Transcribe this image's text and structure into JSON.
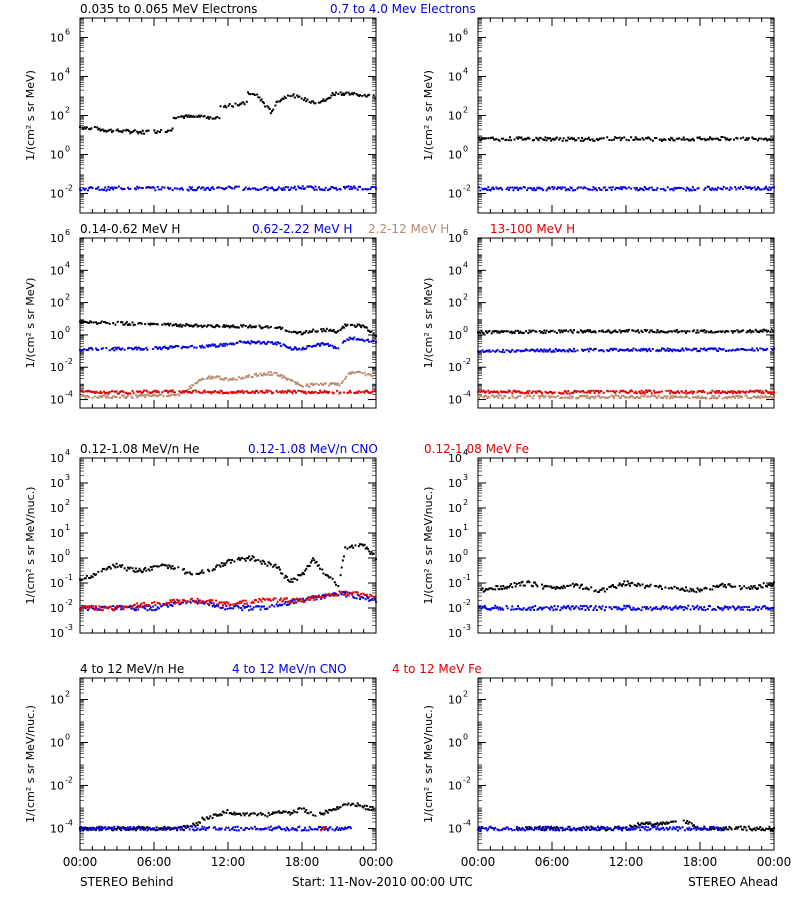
{
  "colors": {
    "black": "#000000",
    "blue": "#0000e0",
    "tan": "#b98a6e",
    "red": "#e00000"
  },
  "chart_data": [
    {
      "type": "scatter",
      "group": "electrons",
      "panel": "STEREO Behind",
      "log_y": true,
      "ylim": [
        0.001,
        10000000
      ],
      "yticks": [
        0.01,
        1,
        100,
        10000,
        1000000
      ],
      "ylabel": "1/(cm² s sr MeV)",
      "xlim": [
        0,
        24
      ],
      "legend": [
        {
          "name": "0.035 to 0.065 MeV Electrons",
          "color": "black"
        },
        {
          "name": "0.7 to 4.0 Mev Electrons",
          "color": "blue"
        }
      ],
      "series": [
        {
          "name": "0.035 to 0.065 MeV Electrons",
          "color": "black",
          "x": [
            0,
            1,
            2,
            3,
            4,
            5,
            6,
            7,
            7.5,
            7.6,
            8,
            9,
            10,
            11,
            11.3,
            11.4,
            12,
            13,
            13.5,
            13.6,
            14,
            14.5,
            15,
            15.5,
            16,
            16.5,
            17,
            18,
            19,
            20,
            20.5,
            21,
            22,
            23,
            24
          ],
          "y": [
            25,
            22,
            18,
            16,
            15,
            14,
            15,
            17,
            18,
            85,
            90,
            85,
            90,
            75,
            70,
            300,
            320,
            380,
            400,
            1500,
            1200,
            900,
            350,
            150,
            500,
            800,
            1200,
            700,
            500,
            600,
            1300,
            1400,
            1300,
            1100,
            900
          ]
        },
        {
          "name": "0.7 to 4.0 Mev Electrons",
          "color": "blue",
          "x": [
            0,
            2,
            4,
            6,
            8,
            10,
            12,
            14,
            16,
            18,
            20,
            22,
            24
          ],
          "y": [
            0.018,
            0.017,
            0.02,
            0.018,
            0.017,
            0.018,
            0.019,
            0.018,
            0.017,
            0.02,
            0.018,
            0.02,
            0.018
          ]
        }
      ]
    },
    {
      "type": "scatter",
      "group": "electrons",
      "panel": "STEREO Ahead",
      "log_y": true,
      "ylim": [
        0.001,
        10000000
      ],
      "yticks": [
        0.01,
        1,
        100,
        10000,
        1000000
      ],
      "ylabel": "1/(cm² s sr MeV)",
      "xlim": [
        0,
        24
      ],
      "series": [
        {
          "name": "0.035 to 0.065 MeV Electrons",
          "color": "black",
          "x": [
            0,
            4,
            8,
            12,
            16,
            20,
            24
          ],
          "y": [
            6,
            6.5,
            6,
            6.5,
            6,
            6.5,
            6.5
          ]
        },
        {
          "name": "0.7 to 4.0 Mev Electrons",
          "color": "blue",
          "x": [
            0,
            4,
            8,
            12,
            16,
            20,
            24
          ],
          "y": [
            0.017,
            0.018,
            0.017,
            0.018,
            0.017,
            0.019,
            0.018
          ]
        }
      ]
    },
    {
      "type": "scatter",
      "group": "protons",
      "panel": "STEREO Behind",
      "log_y": true,
      "ylim": [
        3e-05,
        1000000
      ],
      "yticks": [
        0.0001,
        0.01,
        1,
        100,
        10000,
        1000000
      ],
      "ylabel": "1/(cm² s sr MeV)",
      "xlim": [
        0,
        24
      ],
      "legend": [
        {
          "name": "0.14-0.62 MeV H",
          "color": "black"
        },
        {
          "name": "0.62-2.22 MeV H",
          "color": "blue"
        },
        {
          "name": "2.2-12 MeV H",
          "color": "tan"
        },
        {
          "name": "13-100 MeV H",
          "color": "red"
        }
      ],
      "series": [
        {
          "name": "0.14-0.62 MeV H",
          "color": "black",
          "x": [
            0,
            2,
            4,
            6,
            8,
            10,
            12,
            14,
            16,
            17,
            18,
            19,
            20,
            21,
            21.5,
            22,
            23,
            24
          ],
          "y": [
            6,
            5.5,
            5,
            4.5,
            4,
            3.5,
            3.5,
            3.2,
            3,
            1.5,
            1.3,
            1.8,
            2,
            1.5,
            4,
            4,
            3.5,
            1
          ]
        },
        {
          "name": "0.62-2.22 MeV H",
          "color": "blue",
          "x": [
            0,
            2,
            4,
            6,
            8,
            10,
            12,
            13,
            14,
            16,
            17,
            18,
            20,
            21,
            21.5,
            22,
            23,
            24
          ],
          "y": [
            0.13,
            0.13,
            0.14,
            0.15,
            0.18,
            0.2,
            0.25,
            0.35,
            0.35,
            0.3,
            0.15,
            0.15,
            0.3,
            0.12,
            0.5,
            0.6,
            0.5,
            0.4
          ]
        },
        {
          "name": "2.2-12 MeV H",
          "color": "tan",
          "x": [
            0,
            4,
            8,
            9,
            10,
            11,
            12,
            13,
            14,
            15,
            16,
            17,
            18,
            19,
            20,
            21,
            22,
            23,
            24
          ],
          "y": [
            0.00015,
            0.00015,
            0.0002,
            0.0006,
            0.002,
            0.0025,
            0.0018,
            0.002,
            0.003,
            0.004,
            0.004,
            0.0015,
            0.0007,
            0.0008,
            0.0009,
            0.0008,
            0.005,
            0.004,
            0.003
          ]
        },
        {
          "name": "13-100 MeV H",
          "color": "red",
          "x": [
            0,
            3,
            6,
            9,
            12,
            15,
            18,
            21,
            24
          ],
          "y": [
            0.0003,
            0.00028,
            0.0003,
            0.00032,
            0.00028,
            0.0003,
            0.00029,
            0.0003,
            0.00032
          ]
        }
      ]
    },
    {
      "type": "scatter",
      "group": "protons",
      "panel": "STEREO Ahead",
      "log_y": true,
      "ylim": [
        3e-05,
        1000000
      ],
      "yticks": [
        0.0001,
        0.01,
        1,
        100,
        10000,
        1000000
      ],
      "ylabel": "1/(cm² s sr MeV)",
      "xlim": [
        0,
        24
      ],
      "series": [
        {
          "name": "0.14-0.62 MeV H",
          "color": "black",
          "x": [
            0,
            6,
            12,
            18,
            24
          ],
          "y": [
            1.5,
            1.6,
            1.7,
            1.6,
            1.8
          ]
        },
        {
          "name": "0.62-2.22 MeV H",
          "color": "blue",
          "x": [
            0,
            6,
            12,
            18,
            24
          ],
          "y": [
            0.1,
            0.11,
            0.12,
            0.12,
            0.13
          ]
        },
        {
          "name": "2.2-12 MeV H",
          "color": "tan",
          "x": [
            0,
            6,
            12,
            18,
            24
          ],
          "y": [
            0.00015,
            0.00014,
            0.00015,
            0.00014,
            0.00015
          ]
        },
        {
          "name": "13-100 MeV H",
          "color": "red",
          "x": [
            0,
            6,
            12,
            18,
            24
          ],
          "y": [
            0.0003,
            0.00028,
            0.0003,
            0.00029,
            0.0003
          ]
        }
      ]
    },
    {
      "type": "scatter",
      "group": "low-energy heavy ions",
      "panel": "STEREO Behind",
      "log_y": true,
      "ylim": [
        0.001,
        10000
      ],
      "yticks": [
        0.001,
        0.01,
        0.1,
        1,
        10,
        100,
        1000,
        10000
      ],
      "ylabel": "1/(cm² s sr MeV/nuc.)",
      "xlim": [
        0,
        24
      ],
      "legend": [
        {
          "name": "0.12-1.08 MeV/n He",
          "color": "black"
        },
        {
          "name": "0.12-1.08 MeV/n CNO",
          "color": "blue"
        },
        {
          "name": "0.12-1.08 MeV Fe",
          "color": "red"
        }
      ],
      "series": [
        {
          "name": "0.12-1.08 MeV/n He",
          "color": "black",
          "x": [
            0,
            1,
            2,
            3,
            4,
            5,
            6,
            7,
            8,
            9,
            10,
            11,
            12,
            13,
            14,
            15,
            16,
            16.5,
            17,
            18,
            18.5,
            19,
            19.5,
            20,
            21,
            21.5,
            22,
            23,
            24
          ],
          "y": [
            0.15,
            0.2,
            0.4,
            0.5,
            0.35,
            0.3,
            0.4,
            0.5,
            0.35,
            0.25,
            0.3,
            0.4,
            0.7,
            0.9,
            1,
            0.6,
            0.5,
            0.2,
            0.12,
            0.2,
            0.5,
            0.9,
            0.4,
            0.2,
            0.08,
            2.5,
            3,
            3.5,
            1
          ]
        },
        {
          "name": "0.12-1.08 MeV/n CNO",
          "color": "blue",
          "x": [
            0,
            3,
            6,
            9,
            12,
            15,
            18,
            21,
            24
          ],
          "y": [
            0.01,
            0.01,
            0.01,
            0.02,
            0.01,
            0.01,
            0.02,
            0.04,
            0.02
          ]
        },
        {
          "name": "0.12-1.08 MeV Fe",
          "color": "red",
          "x": [
            0,
            3,
            6,
            9,
            12,
            15,
            18,
            21,
            24
          ],
          "y": [
            0.01,
            0.01,
            0.015,
            0.02,
            0.015,
            0.02,
            0.02,
            0.04,
            0.03
          ]
        }
      ]
    },
    {
      "type": "scatter",
      "group": "low-energy heavy ions",
      "panel": "STEREO Ahead",
      "log_y": true,
      "ylim": [
        0.001,
        10000
      ],
      "yticks": [
        0.001,
        0.01,
        0.1,
        1,
        10,
        100,
        1000,
        10000
      ],
      "ylabel": "1/(cm² s sr MeV/nuc.)",
      "xlim": [
        0,
        24
      ],
      "series": [
        {
          "name": "0.12-1.08 MeV/n He",
          "color": "black",
          "x": [
            0,
            2,
            4,
            6,
            8,
            10,
            12,
            14,
            16,
            18,
            20,
            22,
            24
          ],
          "y": [
            0.05,
            0.07,
            0.1,
            0.06,
            0.08,
            0.05,
            0.1,
            0.07,
            0.06,
            0.05,
            0.08,
            0.06,
            0.1
          ]
        },
        {
          "name": "0.12-1.08 MeV/n CNO",
          "color": "blue",
          "x": [
            0,
            3,
            6,
            9,
            12,
            15,
            18,
            21,
            24
          ],
          "y": [
            0.01,
            0.01,
            0.01,
            0.01,
            0.01,
            0.01,
            0.01,
            0.01,
            0.01
          ]
        }
      ]
    },
    {
      "type": "scatter",
      "group": "high-energy heavy ions",
      "panel": "STEREO Behind",
      "log_y": true,
      "ylim": [
        1e-05,
        1000
      ],
      "yticks": [
        0.0001,
        0.01,
        1,
        100
      ],
      "ylabel": "1/(cm² s sr MeV/nuc.)",
      "xlim": [
        0,
        24
      ],
      "legend": [
        {
          "name": "4 to 12 MeV/n He",
          "color": "black"
        },
        {
          "name": "4 to 12 MeV/n CNO",
          "color": "blue"
        },
        {
          "name": "4 to 12 MeV Fe",
          "color": "red"
        }
      ],
      "series": [
        {
          "name": "4 to 12 MeV/n He",
          "color": "black",
          "x": [
            0,
            2,
            4,
            6,
            8,
            9.5,
            10,
            11,
            12,
            13,
            14,
            15,
            16,
            17,
            18,
            19,
            20,
            21,
            22,
            23,
            24
          ],
          "y": [
            0.0001,
            0.0001,
            0.0001,
            0.0001,
            0.0001,
            0.00015,
            0.0003,
            0.0004,
            0.0006,
            0.0004,
            0.0005,
            0.0004,
            0.0006,
            0.0005,
            0.0008,
            0.0004,
            0.0006,
            0.001,
            0.0015,
            0.001,
            0.0008
          ]
        },
        {
          "name": "4 to 12 MeV/n CNO",
          "color": "blue",
          "x": [
            0,
            10,
            19,
            22
          ],
          "y": [
            0.0001,
            0.0001,
            0.0001,
            0.0001
          ]
        },
        {
          "name": "4 to 12 MeV Fe",
          "color": "red",
          "x": [
            19.5,
            20
          ],
          "y": [
            0.0001,
            0.0001
          ]
        }
      ]
    },
    {
      "type": "scatter",
      "group": "high-energy heavy ions",
      "panel": "STEREO Ahead",
      "log_y": true,
      "ylim": [
        1e-05,
        1000
      ],
      "yticks": [
        0.0001,
        0.01,
        1,
        100
      ],
      "ylabel": "1/(cm² s sr MeV/nuc.)",
      "xlim": [
        0,
        24
      ],
      "series": [
        {
          "name": "4 to 12 MeV/n He",
          "color": "black",
          "x": [
            3,
            6,
            9,
            12,
            13,
            17,
            18,
            21,
            24
          ],
          "y": [
            0.0001,
            0.0001,
            0.0001,
            0.0001,
            0.00015,
            0.0002,
            0.0001,
            0.0001,
            0.0001
          ]
        },
        {
          "name": "4 to 12 MeV/n CNO",
          "color": "blue",
          "x": [
            0,
            1,
            4,
            8,
            15,
            20
          ],
          "y": [
            0.0001,
            0.0001,
            0.0001,
            0.0001,
            0.0001,
            0.0001
          ]
        }
      ]
    }
  ],
  "xaxis": {
    "ticks": [
      0,
      6,
      12,
      18,
      24
    ],
    "tick_labels": [
      "00:00",
      "06:00",
      "12:00",
      "18:00",
      "00:00"
    ]
  },
  "footer": {
    "left": "STEREO Behind",
    "center": "Start: 11-Nov-2010 00:00 UTC",
    "right": "STEREO Ahead"
  }
}
